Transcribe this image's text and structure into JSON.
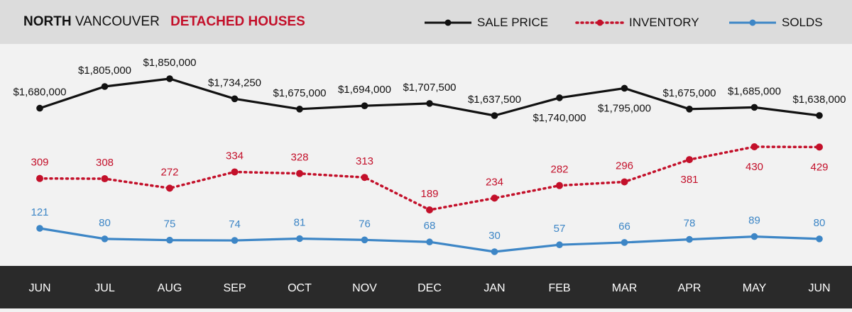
{
  "header": {
    "title_bold": "NORTH",
    "title_rest": "VANCOUVER",
    "title_red": "DETACHED HOUSES"
  },
  "legend": [
    {
      "label": "SALE PRICE",
      "color": "#111111",
      "style": "solid"
    },
    {
      "label": "INVENTORY",
      "color": "#c3102a",
      "style": "dotted"
    },
    {
      "label": "SOLDS",
      "color": "#3d86c6",
      "style": "solid"
    }
  ],
  "chart_data": {
    "type": "line",
    "categories": [
      "JUN",
      "JUL",
      "AUG",
      "SEP",
      "OCT",
      "NOV",
      "DEC",
      "JAN",
      "FEB",
      "MAR",
      "APR",
      "MAY",
      "JUN"
    ],
    "series": [
      {
        "name": "SALE PRICE",
        "values": [
          1680000,
          1805000,
          1850000,
          1734250,
          1675000,
          1694000,
          1707500,
          1637500,
          1740000,
          1795000,
          1675000,
          1685000,
          1638000
        ],
        "labels": [
          "$1,680,000",
          "$1,805,000",
          "$1,850,000",
          "$1,734,250",
          "$1,675,000",
          "$1,694,000",
          "$1,707,500",
          "$1,637,500",
          "$1,740,000",
          "$1,795,000",
          "$1,675,000",
          "$1,685,000",
          "$1,638,000"
        ]
      },
      {
        "name": "INVENTORY",
        "values": [
          309,
          308,
          272,
          334,
          328,
          313,
          189,
          234,
          282,
          296,
          381,
          430,
          429
        ],
        "labels": [
          "309",
          "308",
          "272",
          "334",
          "328",
          "313",
          "189",
          "234",
          "282",
          "296",
          "381",
          "430",
          "429"
        ]
      },
      {
        "name": "SOLDS",
        "values": [
          121,
          80,
          75,
          74,
          81,
          76,
          68,
          30,
          57,
          66,
          78,
          89,
          80
        ],
        "labels": [
          "121",
          "80",
          "75",
          "74",
          "81",
          "76",
          "68",
          "30",
          "57",
          "66",
          "78",
          "89",
          "80"
        ]
      }
    ],
    "title": "NORTH VANCOUVER DETACHED HOUSES",
    "xlabel": "",
    "ylabel": "",
    "grid": false,
    "legend_position": "top-right"
  }
}
